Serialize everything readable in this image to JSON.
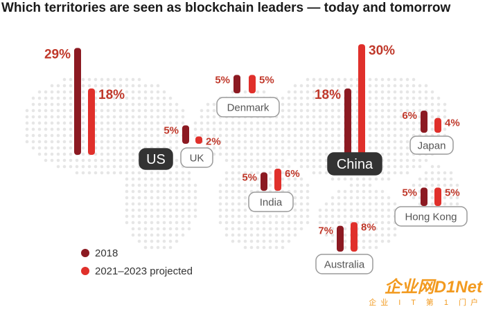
{
  "title": "Which territories are seen as blockchain leaders — today and tomorrow",
  "colors": {
    "series_2018": "#8c1a22",
    "series_projected": "#e0302b",
    "dark_label_bg": "#333333",
    "light_label_border": "#9a9a9a",
    "percent_text": "#c0392b"
  },
  "legend": {
    "items": [
      "2018",
      "2021–2023 projected"
    ],
    "placement": "bottom-left"
  },
  "watermark": {
    "main": "企业网D1Net",
    "sub": "企业 I T 第 1 门户"
  },
  "chart_data": {
    "type": "bar",
    "title": "Which territories are seen as blockchain leaders — today and tomorrow",
    "categories": [
      "US",
      "UK",
      "Denmark",
      "India",
      "China",
      "Japan",
      "Hong Kong",
      "Australia"
    ],
    "series": [
      {
        "name": "2018",
        "values": [
          29,
          5,
          5,
          5,
          18,
          6,
          5,
          7
        ]
      },
      {
        "name": "2021–2023 projected",
        "values": [
          18,
          2,
          5,
          6,
          30,
          4,
          5,
          8
        ]
      }
    ],
    "value_labels": {
      "2018": [
        "29%",
        "5%",
        "5%",
        "5%",
        "18%",
        "6%",
        "5%",
        "7%"
      ],
      "2021–2023 projected": [
        "18%",
        "2%",
        "5%",
        "6%",
        "30%",
        "4%",
        "5%",
        "8%"
      ]
    },
    "highlighted": [
      "US",
      "China"
    ],
    "background": "world map (dotted)"
  }
}
